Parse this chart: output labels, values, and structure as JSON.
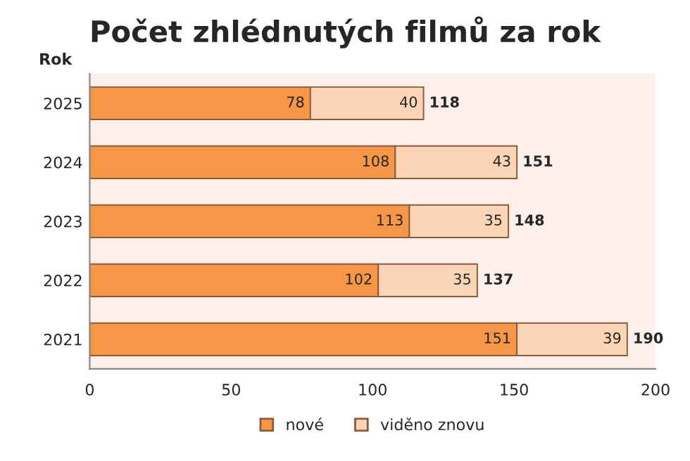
{
  "chart_data": {
    "type": "bar",
    "orientation": "horizontal",
    "stacked": true,
    "title": "Počet zhlédnutých filmů za rok",
    "ylabel": "Rok",
    "categories": [
      "2025",
      "2024",
      "2023",
      "2022",
      "2021"
    ],
    "series": [
      {
        "name": "nové",
        "color": "#f79646",
        "values": [
          78,
          108,
          113,
          102,
          151
        ]
      },
      {
        "name": "viděno znovu",
        "color": "#fbd5b5",
        "values": [
          40,
          43,
          35,
          35,
          39
        ]
      }
    ],
    "data_labels": true,
    "totals": [
      "118",
      "151",
      "148",
      "137",
      "190"
    ],
    "xlim": [
      0,
      200
    ],
    "xticks": [
      0,
      50,
      100,
      150,
      200
    ],
    "grid": false,
    "legend": "bottom"
  }
}
